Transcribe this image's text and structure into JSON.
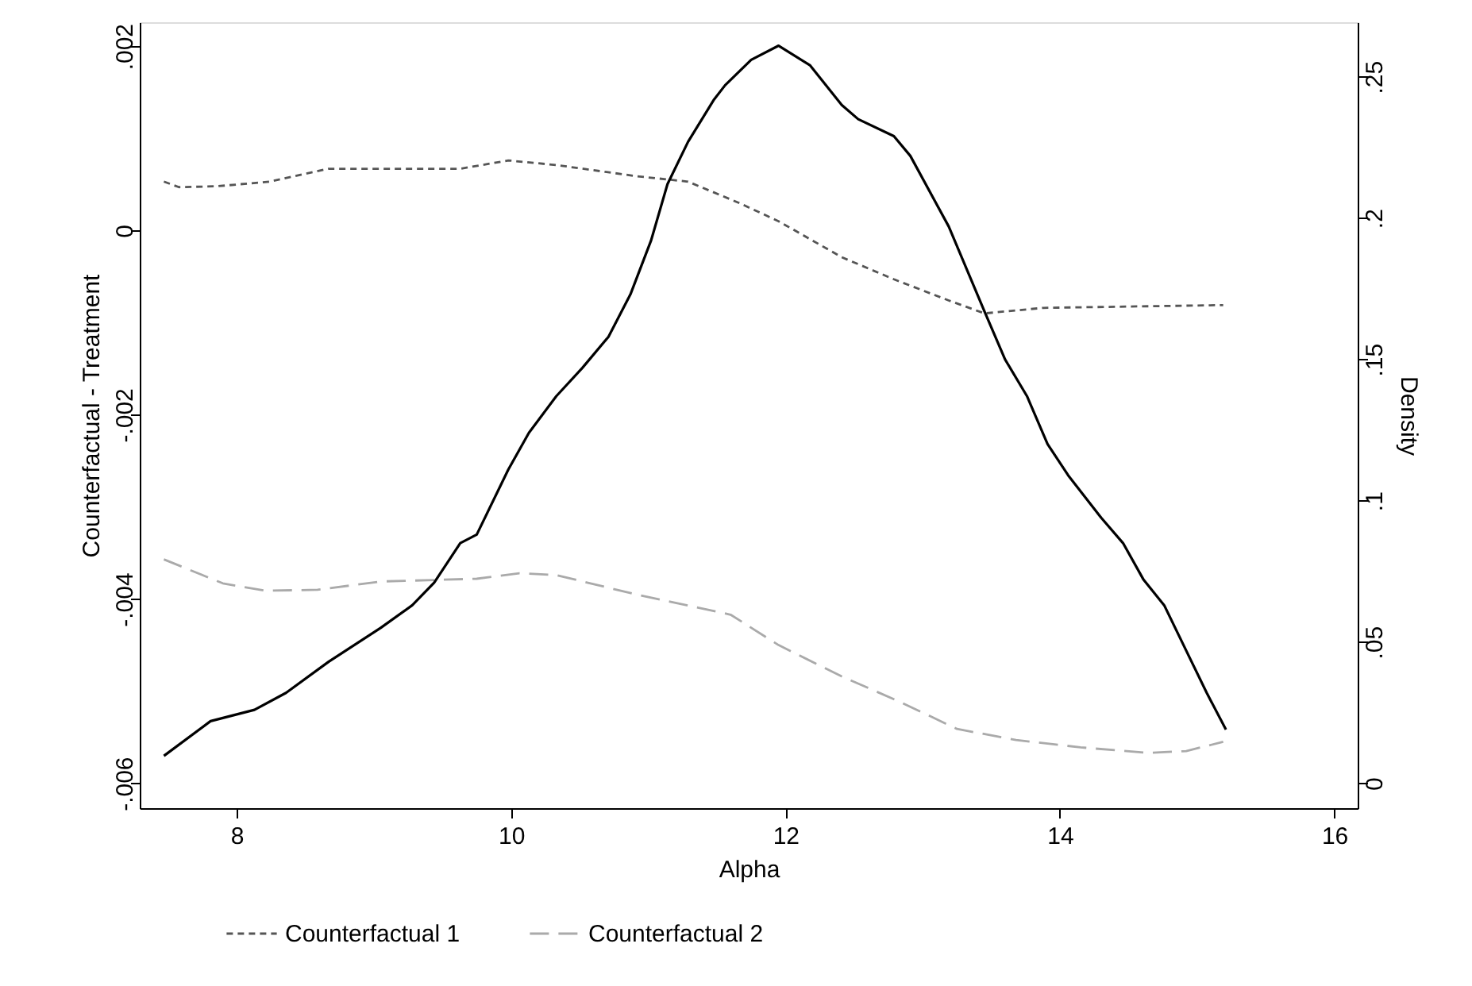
{
  "chart_data": {
    "type": "line",
    "xlabel": "Alpha",
    "ylabel": "Counterfactual - Treatment",
    "y2label": "Density",
    "xlim": [
      7.294,
      16.17
    ],
    "xticks": [
      8,
      10,
      12,
      14,
      16
    ],
    "ylim": [
      -0.00627,
      0.00226
    ],
    "yticks": [
      {
        "value": -0.006,
        "label": "-.006"
      },
      {
        "value": -0.004,
        "label": "-.004"
      },
      {
        "value": -0.002,
        "label": "-.002"
      },
      {
        "value": 0,
        "label": "0"
      },
      {
        "value": 0.002,
        "label": ".002"
      }
    ],
    "y2lim": [
      -0.0088,
      0.2693
    ],
    "y2ticks": [
      {
        "value": 0,
        "label": "0"
      },
      {
        "value": 0.05,
        "label": ".05"
      },
      {
        "value": 0.1,
        "label": ".1"
      },
      {
        "value": 0.15,
        "label": ".15"
      },
      {
        "value": 0.2,
        "label": ".2"
      },
      {
        "value": 0.25,
        "label": ".25"
      }
    ],
    "grid": false,
    "legend": "bottom",
    "series": [
      {
        "name": "Counterfactual 1",
        "color": "#555555",
        "line_style": "dotted",
        "x": [
          7.47,
          7.58,
          7.86,
          8.24,
          8.67,
          9.63,
          9.98,
          10.33,
          10.91,
          11.29,
          11.37,
          11.66,
          11.95,
          12.41,
          12.79,
          13.19,
          13.45,
          13.88,
          15.19
        ],
        "values": [
          0.00053,
          0.00047,
          0.00048,
          0.00053,
          0.00067,
          0.00067,
          0.00076,
          0.00071,
          0.00059,
          0.00053,
          0.00048,
          0.0003,
          0.0001,
          -0.00029,
          -0.00053,
          -0.00076,
          -0.0009,
          -0.00084,
          -0.00081
        ]
      },
      {
        "name": "Counterfactual 2",
        "color": "#aaaaaa",
        "line_style": "dashed",
        "x": [
          7.47,
          7.9,
          8.21,
          8.59,
          9.05,
          9.75,
          10.06,
          10.33,
          10.91,
          11.29,
          11.6,
          11.95,
          12.41,
          12.84,
          13.25,
          13.68,
          14.15,
          14.64,
          14.92,
          15.19
        ],
        "values": [
          -0.00357,
          -0.00383,
          -0.00391,
          -0.0039,
          -0.00381,
          -0.00378,
          -0.00372,
          -0.00374,
          -0.00395,
          -0.00407,
          -0.00417,
          -0.0045,
          -0.00484,
          -0.00512,
          -0.00541,
          -0.00553,
          -0.00561,
          -0.00567,
          -0.00565,
          -0.00555
        ]
      },
      {
        "color": "#000000",
        "line_style": "solid",
        "axis": "y2",
        "x": [
          7.47,
          7.81,
          8.13,
          8.36,
          8.67,
          9.05,
          9.28,
          9.44,
          9.63,
          9.75,
          9.98,
          10.13,
          10.33,
          10.52,
          10.71,
          10.87,
          11.02,
          11.14,
          11.29,
          11.48,
          11.56,
          11.75,
          11.95,
          12.18,
          12.41,
          12.53,
          12.79,
          12.91,
          13.19,
          13.45,
          13.6,
          13.76,
          13.91,
          14.06,
          14.3,
          14.46,
          14.61,
          14.76,
          14.92,
          15.07,
          15.21
        ],
        "values": [
          0.0097,
          0.022,
          0.026,
          0.032,
          0.043,
          0.055,
          0.063,
          0.071,
          0.085,
          0.088,
          0.111,
          0.124,
          0.137,
          0.147,
          0.158,
          0.173,
          0.192,
          0.212,
          0.227,
          0.242,
          0.247,
          0.256,
          0.261,
          0.254,
          0.24,
          0.235,
          0.229,
          0.222,
          0.197,
          0.167,
          0.15,
          0.137,
          0.12,
          0.109,
          0.094,
          0.085,
          0.072,
          0.063,
          0.047,
          0.032,
          0.019
        ]
      }
    ]
  }
}
